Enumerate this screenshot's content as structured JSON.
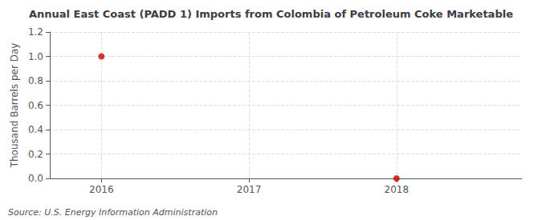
{
  "chart_data": {
    "type": "scatter",
    "title": "Annual East Coast (PADD 1) Imports from Colombia of Petroleum Coke Marketable",
    "ylabel": "Thousand Barrels per Day",
    "annotations": [
      "Source: U.S. Energy Information Administration"
    ],
    "x": [
      2016,
      2018
    ],
    "values": [
      1.0,
      0.0
    ],
    "color": "#cc0000",
    "marker": "circle",
    "xlim": [
      2015.65,
      2018.85
    ],
    "xticks": [
      2016,
      2017,
      2018
    ],
    "ylim": [
      0.0,
      1.2
    ],
    "yticks": [
      {
        "value": 0.0,
        "label": "0.0"
      },
      0.2,
      0.4,
      0.6,
      0.8,
      {
        "value": 1.0,
        "label": "1.0"
      },
      1.2
    ],
    "grid": true
  }
}
